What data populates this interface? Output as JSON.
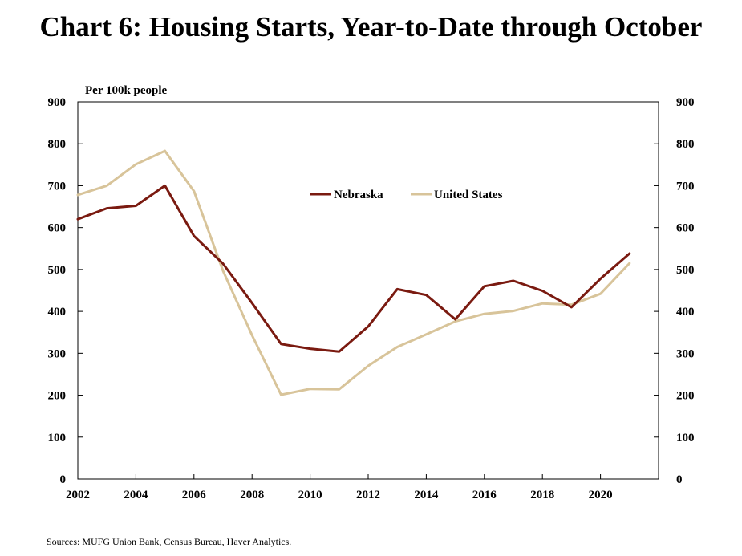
{
  "title": "Chart 6: Housing Starts, Year-to-Date through October",
  "source": "Sources: MUFG Union Bank, Census Bureau, Haver Analytics.",
  "chart_data": {
    "type": "line",
    "title": "Chart 6: Housing Starts, Year-to-Date through October",
    "ylabel": "Per 100k people",
    "xlabel": "",
    "xlim": [
      2002,
      2022
    ],
    "ylim": [
      0,
      900
    ],
    "x_ticks": [
      "2002",
      "2004",
      "2006",
      "2008",
      "2010",
      "2012",
      "2014",
      "2016",
      "2018",
      "2020"
    ],
    "y_ticks_left": [
      "0",
      "100",
      "200",
      "300",
      "400",
      "500",
      "600",
      "700",
      "800",
      "900"
    ],
    "y_ticks_right": [
      "0",
      "100",
      "200",
      "300",
      "400",
      "500",
      "600",
      "700",
      "800",
      "900"
    ],
    "grid": false,
    "legend": "top-center",
    "x": [
      2002,
      2003,
      2004,
      2005,
      2006,
      2007,
      2008,
      2009,
      2010,
      2011,
      2012,
      2013,
      2014,
      2015,
      2016,
      2017,
      2018,
      2019,
      2020,
      2021
    ],
    "series": [
      {
        "name": "Nebraska",
        "color": "#7a1a10",
        "values": [
          620,
          646,
          652,
          700,
          580,
          514,
          420,
          322,
          311,
          304,
          364,
          453,
          439,
          381,
          460,
          473,
          449,
          410,
          478,
          538
        ]
      },
      {
        "name": "United States",
        "color": "#d8c49a",
        "values": [
          678,
          700,
          751,
          783,
          687,
          497,
          343,
          201,
          215,
          214,
          270,
          315,
          345,
          376,
          394,
          401,
          419,
          416,
          442,
          515
        ]
      }
    ]
  }
}
